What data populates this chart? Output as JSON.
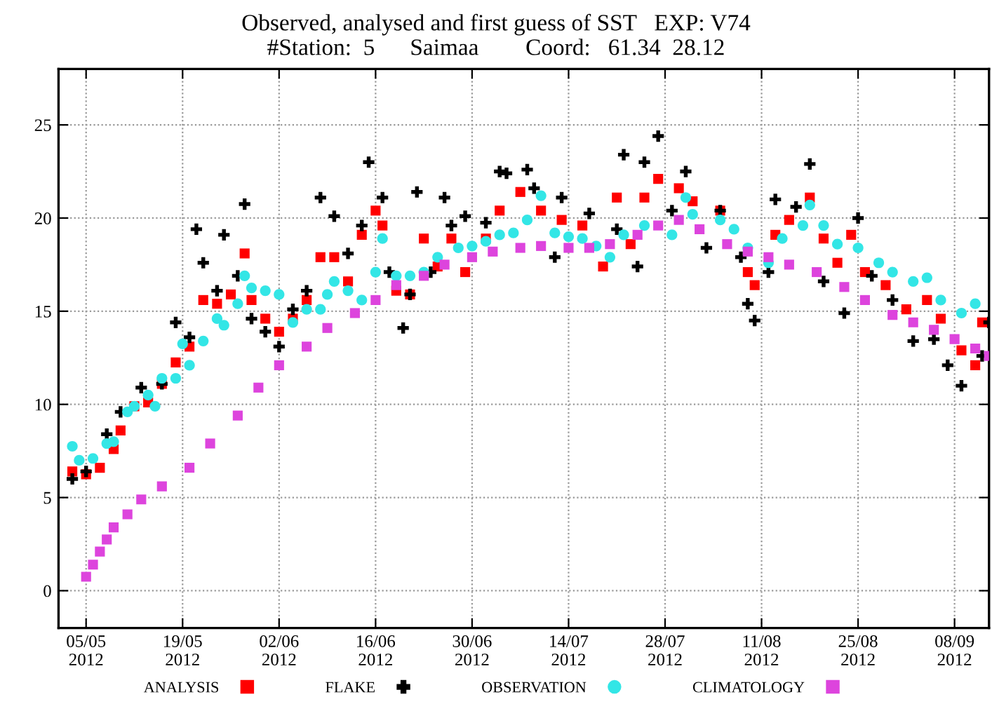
{
  "chart_data": {
    "type": "scatter",
    "title": "Observed, analysed and first guess of SST   EXP: V74",
    "subtitle": "#Station:  5      Saimaa        Coord:   61.34  28.12",
    "xlim": [
      "2012-05-01",
      "2012-09-13"
    ],
    "xticks": [
      {
        "value": "2012-05-05",
        "label": "05/05\n2012"
      },
      {
        "value": "2012-05-19",
        "label": "19/05\n2012"
      },
      {
        "value": "2012-06-02",
        "label": "02/06\n2012"
      },
      {
        "value": "2012-06-16",
        "label": "16/06\n2012"
      },
      {
        "value": "2012-06-30",
        "label": "30/06\n2012"
      },
      {
        "value": "2012-07-14",
        "label": "14/07\n2012"
      },
      {
        "value": "2012-07-28",
        "label": "28/07\n2012"
      },
      {
        "value": "2012-08-11",
        "label": "11/08\n2012"
      },
      {
        "value": "2012-08-25",
        "label": "25/08\n2012"
      },
      {
        "value": "2012-09-08",
        "label": "08/09\n2012"
      }
    ],
    "ylim": [
      -2,
      28
    ],
    "yticks": [
      0,
      5,
      10,
      15,
      20,
      25
    ],
    "grid": true,
    "legend": "bottom",
    "series": [
      {
        "name": "ANALYSIS",
        "color": "#ff0000",
        "marker": "square",
        "x": [
          "2012-05-03",
          "2012-05-05",
          "2012-05-07",
          "2012-05-09",
          "2012-05-10",
          "2012-05-12",
          "2012-05-14",
          "2012-05-16",
          "2012-05-18",
          "2012-05-20",
          "2012-05-22",
          "2012-05-24",
          "2012-05-26",
          "2012-05-28",
          "2012-05-29",
          "2012-05-31",
          "2012-06-02",
          "2012-06-04",
          "2012-06-06",
          "2012-06-08",
          "2012-06-10",
          "2012-06-12",
          "2012-06-14",
          "2012-06-16",
          "2012-06-17",
          "2012-06-19",
          "2012-06-21",
          "2012-06-23",
          "2012-06-25",
          "2012-06-27",
          "2012-06-29",
          "2012-07-02",
          "2012-07-04",
          "2012-07-07",
          "2012-07-10",
          "2012-07-13",
          "2012-07-16",
          "2012-07-19",
          "2012-07-21",
          "2012-07-23",
          "2012-07-25",
          "2012-07-27",
          "2012-07-30",
          "2012-08-01",
          "2012-08-05",
          "2012-08-09",
          "2012-08-10",
          "2012-08-13",
          "2012-08-15",
          "2012-08-18",
          "2012-08-20",
          "2012-08-22",
          "2012-08-24",
          "2012-08-26",
          "2012-08-29",
          "2012-09-01",
          "2012-09-04",
          "2012-09-06",
          "2012-09-09",
          "2012-09-11",
          "2012-09-12"
        ],
        "values": [
          6.4,
          6.25,
          6.6,
          7.6,
          8.6,
          9.9,
          10.1,
          11.1,
          12.25,
          13.1,
          15.6,
          15.4,
          15.9,
          18.1,
          15.6,
          14.6,
          13.9,
          14.6,
          15.6,
          17.9,
          17.9,
          16.6,
          19.1,
          20.4,
          19.6,
          16.1,
          15.9,
          18.9,
          17.4,
          18.9,
          17.1,
          18.9,
          20.4,
          21.4,
          20.4,
          19.9,
          19.6,
          17.4,
          21.1,
          18.6,
          21.1,
          22.1,
          21.6,
          20.9,
          20.4,
          17.1,
          16.4,
          19.1,
          19.9,
          21.1,
          18.9,
          17.6,
          19.1,
          17.1,
          16.4,
          15.1,
          15.6,
          14.6,
          12.9,
          12.1,
          14.4
        ]
      },
      {
        "name": "FLAKE",
        "color": "#000000",
        "marker": "cross",
        "x": [
          "2012-05-03",
          "2012-05-05",
          "2012-05-08",
          "2012-05-10",
          "2012-05-13",
          "2012-05-16",
          "2012-05-18",
          "2012-05-20",
          "2012-05-21",
          "2012-05-22",
          "2012-05-24",
          "2012-05-25",
          "2012-05-27",
          "2012-05-28",
          "2012-05-29",
          "2012-05-31",
          "2012-06-02",
          "2012-06-04",
          "2012-06-06",
          "2012-06-08",
          "2012-06-10",
          "2012-06-12",
          "2012-06-14",
          "2012-06-15",
          "2012-06-17",
          "2012-06-18",
          "2012-06-20",
          "2012-06-21",
          "2012-06-22",
          "2012-06-24",
          "2012-06-26",
          "2012-06-27",
          "2012-06-29",
          "2012-07-02",
          "2012-07-04",
          "2012-07-05",
          "2012-07-08",
          "2012-07-09",
          "2012-07-12",
          "2012-07-13",
          "2012-07-17",
          "2012-07-21",
          "2012-07-22",
          "2012-07-24",
          "2012-07-25",
          "2012-07-27",
          "2012-07-29",
          "2012-07-31",
          "2012-08-03",
          "2012-08-05",
          "2012-08-08",
          "2012-08-09",
          "2012-08-10",
          "2012-08-12",
          "2012-08-13",
          "2012-08-16",
          "2012-08-18",
          "2012-08-20",
          "2012-08-23",
          "2012-08-25",
          "2012-08-27",
          "2012-08-30",
          "2012-09-02",
          "2012-09-05",
          "2012-09-07",
          "2012-09-09",
          "2012-09-12",
          "2012-09-13"
        ],
        "values": [
          6.0,
          6.4,
          8.4,
          9.6,
          10.9,
          11.1,
          14.4,
          13.6,
          19.4,
          17.6,
          16.1,
          19.1,
          16.9,
          20.75,
          14.6,
          13.9,
          13.1,
          15.1,
          16.1,
          21.1,
          20.1,
          18.1,
          19.6,
          23.0,
          21.1,
          17.1,
          14.1,
          15.9,
          21.4,
          17.1,
          21.1,
          19.6,
          20.1,
          19.75,
          22.5,
          22.4,
          22.6,
          21.6,
          17.9,
          21.1,
          20.25,
          19.4,
          23.4,
          17.4,
          23.0,
          24.4,
          20.4,
          22.5,
          18.4,
          20.4,
          17.9,
          15.4,
          14.5,
          17.1,
          21.0,
          20.6,
          22.9,
          16.6,
          14.9,
          20.0,
          16.9,
          15.6,
          13.4,
          13.5,
          12.1,
          11.0,
          12.6,
          14.4
        ]
      },
      {
        "name": "OBSERVATION",
        "color": "#33e6e6",
        "marker": "circle",
        "x": [
          "2012-05-03",
          "2012-05-04",
          "2012-05-06",
          "2012-05-08",
          "2012-05-09",
          "2012-05-11",
          "2012-05-12",
          "2012-05-14",
          "2012-05-15",
          "2012-05-16",
          "2012-05-18",
          "2012-05-19",
          "2012-05-20",
          "2012-05-22",
          "2012-05-24",
          "2012-05-25",
          "2012-05-27",
          "2012-05-28",
          "2012-05-29",
          "2012-05-31",
          "2012-06-02",
          "2012-06-04",
          "2012-06-06",
          "2012-06-08",
          "2012-06-09",
          "2012-06-10",
          "2012-06-12",
          "2012-06-14",
          "2012-06-16",
          "2012-06-17",
          "2012-06-19",
          "2012-06-21",
          "2012-06-23",
          "2012-06-25",
          "2012-06-28",
          "2012-06-30",
          "2012-07-02",
          "2012-07-04",
          "2012-07-06",
          "2012-07-08",
          "2012-07-10",
          "2012-07-12",
          "2012-07-14",
          "2012-07-16",
          "2012-07-18",
          "2012-07-20",
          "2012-07-22",
          "2012-07-25",
          "2012-07-29",
          "2012-07-31",
          "2012-08-01",
          "2012-08-05",
          "2012-08-07",
          "2012-08-09",
          "2012-08-12",
          "2012-08-14",
          "2012-08-17",
          "2012-08-18",
          "2012-08-20",
          "2012-08-22",
          "2012-08-25",
          "2012-08-28",
          "2012-08-30",
          "2012-09-02",
          "2012-09-04",
          "2012-09-06",
          "2012-09-09",
          "2012-09-11"
        ],
        "values": [
          7.75,
          7.0,
          7.1,
          7.9,
          8.0,
          9.6,
          9.9,
          10.5,
          9.9,
          11.4,
          11.4,
          13.25,
          12.1,
          13.4,
          14.6,
          14.25,
          15.4,
          16.9,
          16.25,
          16.1,
          15.9,
          14.4,
          15.1,
          15.1,
          15.9,
          16.6,
          16.1,
          15.6,
          17.1,
          18.9,
          16.9,
          16.9,
          17.1,
          17.9,
          18.4,
          18.5,
          18.75,
          19.1,
          19.2,
          19.9,
          21.2,
          19.2,
          19.0,
          18.9,
          18.5,
          17.9,
          19.1,
          19.6,
          19.1,
          21.1,
          20.2,
          19.9,
          19.4,
          18.4,
          17.6,
          18.9,
          19.6,
          20.7,
          19.6,
          18.6,
          18.4,
          17.6,
          17.1,
          16.6,
          16.8,
          15.6,
          14.9,
          15.4
        ]
      },
      {
        "name": "CLIMATOLOGY",
        "color": "#dd44dd",
        "marker": "square",
        "x": [
          "2012-05-05",
          "2012-05-06",
          "2012-05-07",
          "2012-05-08",
          "2012-05-09",
          "2012-05-11",
          "2012-05-13",
          "2012-05-16",
          "2012-05-20",
          "2012-05-23",
          "2012-05-27",
          "2012-05-30",
          "2012-06-02",
          "2012-06-06",
          "2012-06-09",
          "2012-06-13",
          "2012-06-16",
          "2012-06-19",
          "2012-06-23",
          "2012-06-26",
          "2012-06-30",
          "2012-07-03",
          "2012-07-07",
          "2012-07-10",
          "2012-07-14",
          "2012-07-17",
          "2012-07-20",
          "2012-07-24",
          "2012-07-27",
          "2012-07-30",
          "2012-08-02",
          "2012-08-06",
          "2012-08-09",
          "2012-08-12",
          "2012-08-15",
          "2012-08-19",
          "2012-08-23",
          "2012-08-26",
          "2012-08-30",
          "2012-09-02",
          "2012-09-05",
          "2012-09-08",
          "2012-09-11",
          "2012-09-13"
        ],
        "values": [
          0.75,
          1.4,
          2.1,
          2.75,
          3.4,
          4.1,
          4.9,
          5.6,
          6.6,
          7.9,
          9.4,
          10.9,
          12.1,
          13.1,
          14.1,
          14.9,
          15.6,
          16.4,
          16.9,
          17.5,
          17.9,
          18.2,
          18.4,
          18.5,
          18.4,
          18.4,
          18.6,
          19.1,
          19.6,
          19.9,
          19.4,
          18.6,
          18.2,
          17.9,
          17.5,
          17.1,
          16.3,
          15.6,
          14.8,
          14.4,
          14.0,
          13.5,
          13.0,
          12.6
        ]
      }
    ]
  }
}
